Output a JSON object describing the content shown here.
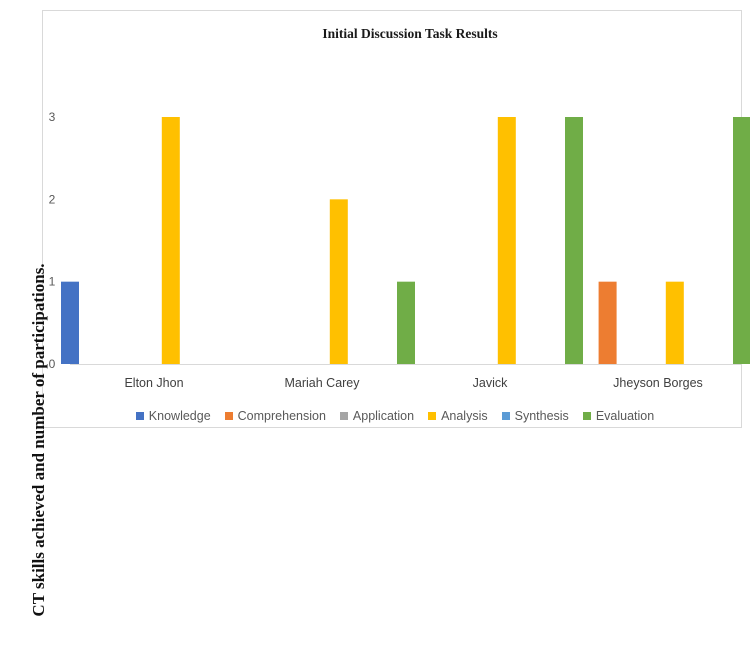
{
  "chart_data": {
    "type": "bar",
    "title": "Initial Discussion Task Results",
    "xlabel": "",
    "ylabel": "CT skills achieved and number of participations.",
    "ylim": [
      0,
      3
    ],
    "yticks": [
      0,
      1,
      2,
      3
    ],
    "grid": false,
    "legend_position": "bottom",
    "categories": [
      "Elton Jhon",
      "Mariah Carey",
      "Javick",
      "Jheyson Borges"
    ],
    "series": [
      {
        "name": "Knowledge",
        "color": "#4472c4",
        "values": [
          1,
          0,
          0,
          0
        ]
      },
      {
        "name": "Comprehension",
        "color": "#ed7d31",
        "values": [
          0,
          0,
          0,
          1
        ]
      },
      {
        "name": "Application",
        "color": "#a5a5a5",
        "values": [
          0,
          0,
          0,
          0
        ]
      },
      {
        "name": "Analysis",
        "color": "#ffc000",
        "values": [
          3,
          2,
          3,
          1
        ]
      },
      {
        "name": "Synthesis",
        "color": "#5b9bd5",
        "values": [
          0,
          0,
          0,
          0
        ]
      },
      {
        "name": "Evaluation",
        "color": "#70ad47",
        "values": [
          0,
          1,
          3,
          3
        ]
      }
    ]
  }
}
